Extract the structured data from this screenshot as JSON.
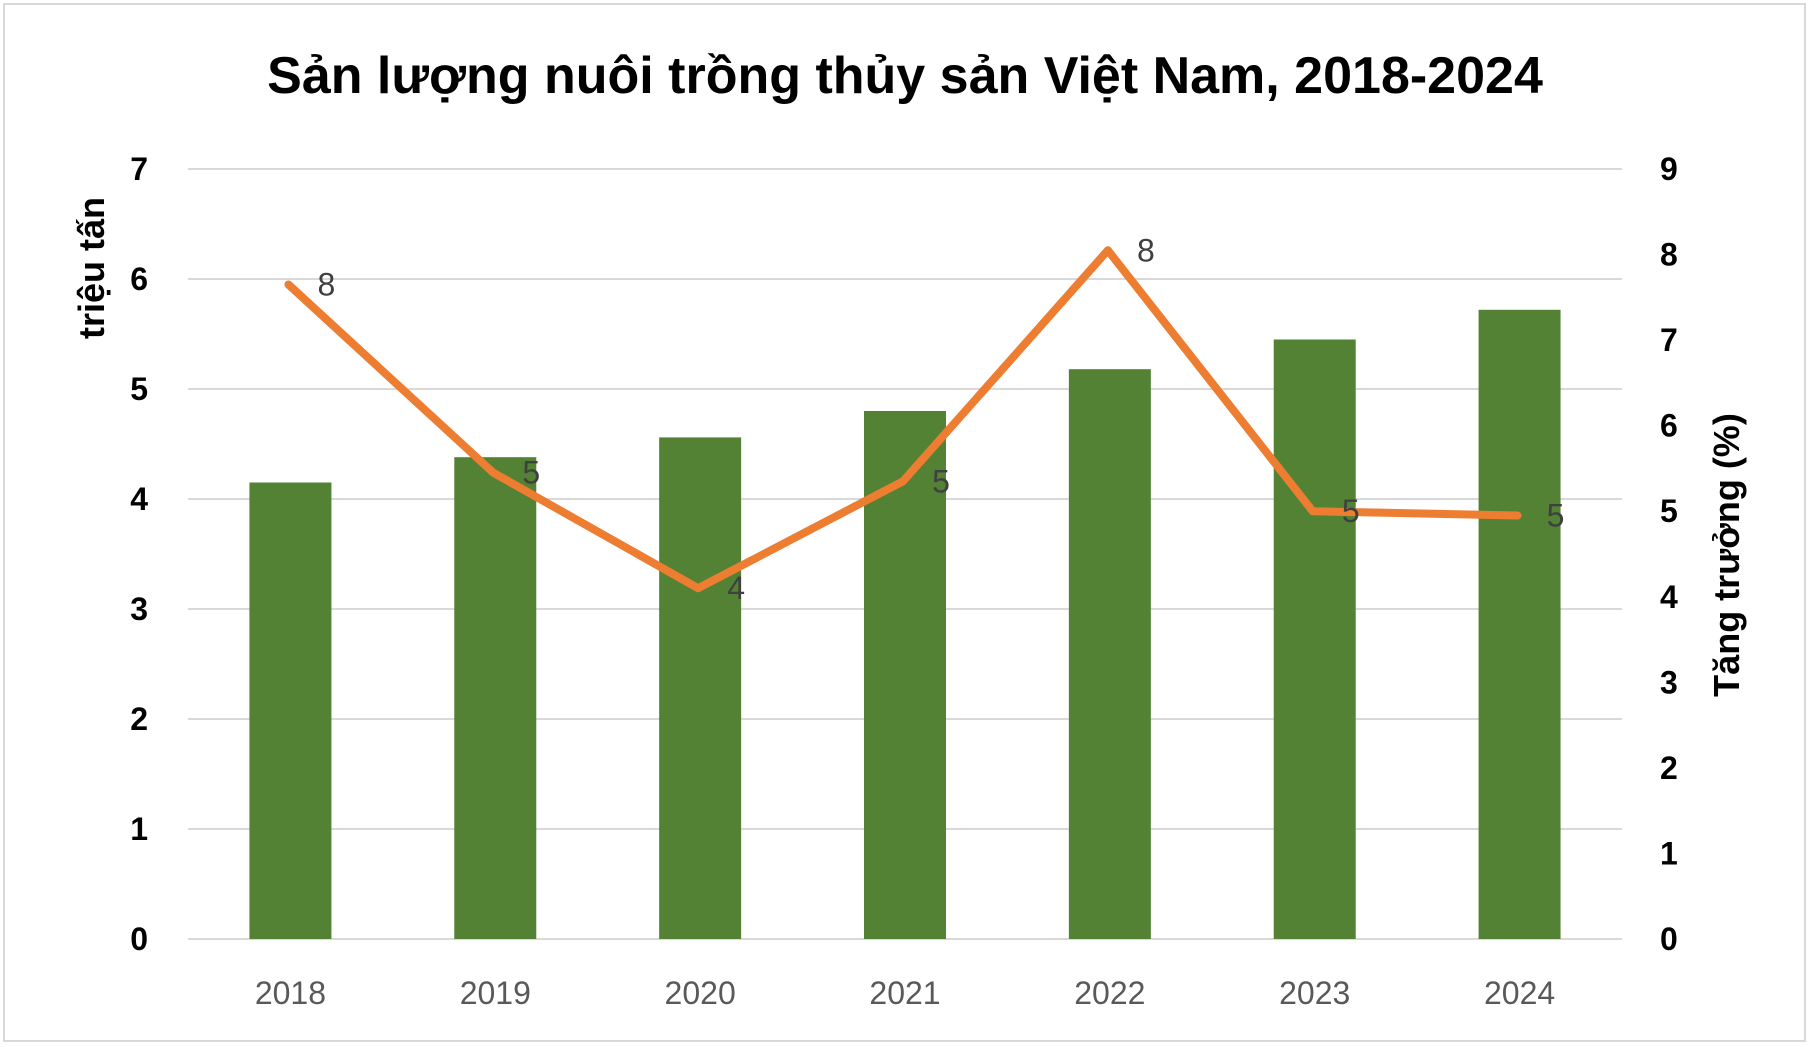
{
  "chart_data": {
    "type": "bar+line",
    "title": "Sản lượng nuôi trồng thủy sản Việt Nam, 2018-2024",
    "categories": [
      "2018",
      "2019",
      "2020",
      "2021",
      "2022",
      "2023",
      "2024"
    ],
    "series": [
      {
        "type": "bar",
        "axis": "left",
        "color": "#548235",
        "values": [
          4.15,
          4.38,
          4.56,
          4.8,
          5.18,
          5.45,
          5.72
        ]
      },
      {
        "type": "line",
        "axis": "right",
        "color": "#ED7D31",
        "values": [
          7.65,
          5.45,
          4.1,
          5.35,
          8.05,
          5.0,
          4.95
        ],
        "data_labels": [
          "8",
          "5",
          "4",
          "5",
          "8",
          "5",
          "5"
        ]
      }
    ],
    "y_left": {
      "label": "triệu tấn",
      "range": [
        0,
        7
      ],
      "ticks": [
        "0",
        "1",
        "2",
        "3",
        "4",
        "5",
        "6",
        "7"
      ]
    },
    "y_right": {
      "label": "Tăng trưởng (%)",
      "range": [
        0,
        9
      ],
      "ticks": [
        "0",
        "1",
        "2",
        "3",
        "4",
        "5",
        "6",
        "7",
        "8",
        "9"
      ]
    },
    "grid": true,
    "gridColor": "#d9d9d9",
    "legend": "none"
  }
}
